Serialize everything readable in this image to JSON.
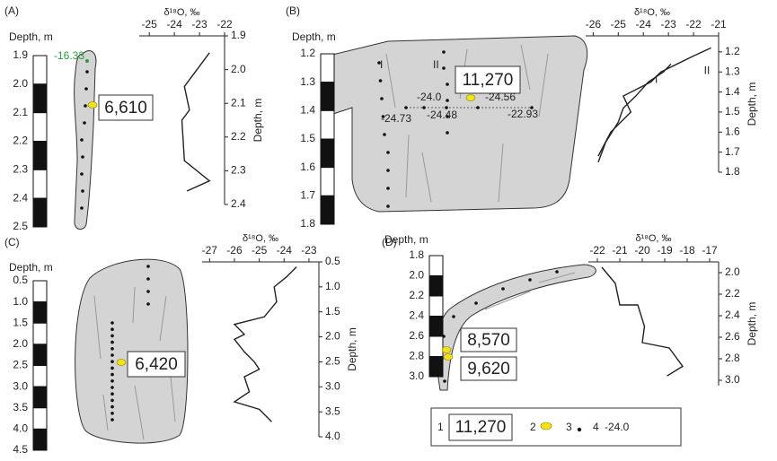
{
  "panels": [
    {
      "label": "(A)",
      "depth_label": "Depth, m",
      "depth_lim": [
        1.9,
        2.5
      ],
      "depth_ticks": [
        1.9,
        {
          "value": 2,
          "label": "2.0"
        },
        2.1,
        2.2,
        2.3,
        2.4,
        2.5
      ],
      "ages": [
        "6,610"
      ],
      "annotations": [
        "-16.33"
      ]
    },
    {
      "label": "(B)",
      "depth_label": "Depth, m",
      "depth_lim": [
        1.2,
        1.8
      ],
      "depth_ticks": [
        1.2,
        1.3,
        1.4,
        1.5,
        1.6,
        1.7,
        1.8
      ],
      "ages": [
        "11,270"
      ],
      "annotations": [
        "I",
        "II",
        "-24.0",
        "-24.56",
        "-24.73",
        "-24.48",
        "-22.93"
      ]
    },
    {
      "label": "(C)",
      "depth_label": "Depth, m",
      "depth_lim": [
        0.5,
        4.5
      ],
      "depth_ticks": [
        0.5,
        {
          "value": 1,
          "label": "1.0"
        },
        1.5,
        {
          "value": 2,
          "label": "2.0"
        },
        2.5,
        {
          "value": 3,
          "label": "3.0"
        },
        3.5,
        {
          "value": 4,
          "label": "4.0"
        },
        4.5
      ],
      "ages": [
        "6,420"
      ],
      "annotations": []
    },
    {
      "label": "(D)",
      "depth_label": "Depth, m",
      "depth_lim": [
        1.8,
        3.0
      ],
      "depth_ticks": [
        1.8,
        {
          "value": 2,
          "label": "2.0"
        },
        2.2,
        2.4,
        2.6,
        2.8,
        {
          "value": 3,
          "label": "3.0"
        }
      ],
      "ages": [
        "8,570",
        "9,620"
      ],
      "annotations": []
    }
  ],
  "chart_data": [
    {
      "type": "line",
      "x_label": "δ¹⁸O, ‰",
      "y_label": "Depth, m",
      "xlim": [
        -25.4,
        -22
      ],
      "xticks": [
        -25,
        -24,
        -23,
        -22
      ],
      "ylim": [
        1.9,
        2.4
      ],
      "yticks": [
        1.9,
        {
          "value": 2,
          "label": "2.0"
        },
        2.1,
        2.2,
        2.3,
        2.4
      ],
      "series": [
        {
          "color": "#222222",
          "x": [
            -22.6,
            -23.6,
            -23.4,
            -23.7,
            -23.6,
            -22.6,
            -23.5
          ],
          "values": [
            1.95,
            2.05,
            2.12,
            2.15,
            2.27,
            2.33,
            2.36
          ]
        }
      ]
    },
    {
      "type": "line",
      "x_label": "δ¹⁸O, ‰",
      "y_label": "Depth, m",
      "xlim": [
        -26.3,
        -21
      ],
      "xticks": [
        -26,
        -25,
        -24,
        -23,
        -22,
        -21
      ],
      "ylim": [
        1.12,
        1.8
      ],
      "yticks": [
        1.2,
        1.3,
        1.4,
        1.5,
        1.6,
        1.7,
        1.8
      ],
      "series": [
        {
          "name": "I",
          "color": "#222222",
          "x": [
            -25.8,
            -25.5,
            -25,
            -24.8,
            -24.3,
            -23.8,
            -23.2,
            -22.9
          ],
          "values": [
            1.75,
            1.65,
            1.55,
            1.48,
            1.42,
            1.35,
            1.3,
            1.26
          ]
        },
        {
          "name": "II",
          "color": "#222222",
          "x": [
            -25.8,
            -25.3,
            -24.5,
            -24.8,
            -23.7,
            -23.3,
            -22,
            -21.3
          ],
          "values": [
            1.72,
            1.6,
            1.5,
            1.42,
            1.35,
            1.3,
            1.22,
            1.18
          ]
        }
      ]
    },
    {
      "type": "line",
      "x_label": "δ¹⁸O, ‰",
      "y_label": "Depth, m",
      "xlim": [
        -27.3,
        -22.6
      ],
      "xticks": [
        -27,
        -26,
        -25,
        -24,
        -23
      ],
      "ylim": [
        0.5,
        4
      ],
      "yticks": [
        0.5,
        {
          "value": 1,
          "label": "1.0"
        },
        1.5,
        {
          "value": 2,
          "label": "2.0"
        },
        2.5,
        {
          "value": 3,
          "label": "3.0"
        },
        3.5,
        {
          "value": 4,
          "label": "4.0"
        }
      ],
      "series": [
        {
          "color": "#222222",
          "x": [
            -23.5,
            -23.9,
            -24.4,
            -24.3,
            -24.8,
            -26,
            -25.6,
            -26,
            -25.6,
            -25.2,
            -25,
            -25.6,
            -25.4,
            -26,
            -25,
            -24.5
          ],
          "values": [
            0.6,
            0.8,
            1,
            1.3,
            1.6,
            1.75,
            1.95,
            2.05,
            2.3,
            2.5,
            2.65,
            2.8,
            3.1,
            3.3,
            3.45,
            3.7
          ]
        }
      ]
    },
    {
      "type": "line",
      "x_label": "δ¹⁸O, ‰",
      "y_label": "Depth, m",
      "xlim": [
        -22.4,
        -16.6
      ],
      "xticks": [
        -22,
        -21,
        -20,
        -19,
        -18,
        -17
      ],
      "ylim": [
        1.9,
        3.05
      ],
      "yticks": [
        {
          "value": 2,
          "label": "2.0"
        },
        2.2,
        2.4,
        2.6,
        2.8,
        {
          "value": 3,
          "label": "3.0"
        }
      ],
      "series": [
        {
          "color": "#222222",
          "x": [
            -21.8,
            -21.2,
            -21,
            -20.2,
            -19.9,
            -20,
            -18.8,
            -18.2,
            -18.9
          ],
          "values": [
            1.95,
            2.1,
            2.3,
            2.3,
            2.5,
            2.65,
            2.7,
            2.87,
            2.96
          ]
        }
      ]
    }
  ],
  "legend": {
    "items": [
      {
        "number": "1",
        "label": "11,270"
      },
      {
        "number": "2"
      },
      {
        "number": "3"
      },
      {
        "number": "4",
        "label": "-24.0"
      }
    ]
  }
}
